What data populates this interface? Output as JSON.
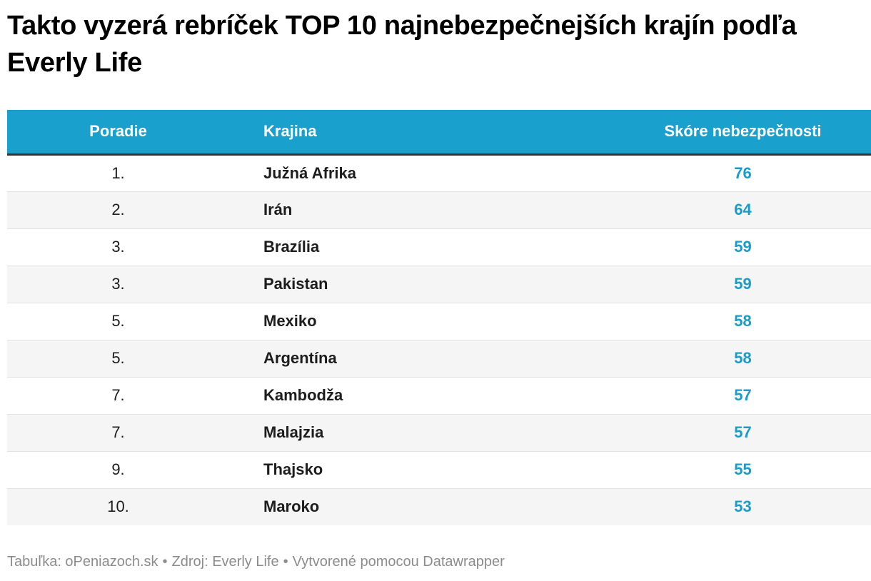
{
  "title": "Takto vyzerá rebríček TOP 10 najnebezpečnejších krajín podľa Everly Life",
  "colors": {
    "header_bg": "#1aa0cc",
    "score_text": "#1a9ccb"
  },
  "chart_data": {
    "type": "table",
    "columns": [
      "Poradie",
      "Krajina",
      "Skóre nebezpečnosti"
    ],
    "rows": [
      {
        "rank": "1.",
        "country": "Južná Afrika",
        "score": 76
      },
      {
        "rank": "2.",
        "country": "Irán",
        "score": 64
      },
      {
        "rank": "3.",
        "country": "Brazília",
        "score": 59
      },
      {
        "rank": "3.",
        "country": "Pakistan",
        "score": 59
      },
      {
        "rank": "5.",
        "country": "Mexiko",
        "score": 58
      },
      {
        "rank": "5.",
        "country": "Argentína",
        "score": 58
      },
      {
        "rank": "7.",
        "country": "Kambodža",
        "score": 57
      },
      {
        "rank": "7.",
        "country": "Malajzia",
        "score": 57
      },
      {
        "rank": "9.",
        "country": "Thajsko",
        "score": 55
      },
      {
        "rank": "10.",
        "country": "Maroko",
        "score": 53
      }
    ]
  },
  "footer": {
    "table_credit": "Tabuľka: oPeniazoch.sk",
    "source": "Zdroj: Everly Life",
    "created_with": "Vytvorené pomocou Datawrapper",
    "separator": "•"
  }
}
